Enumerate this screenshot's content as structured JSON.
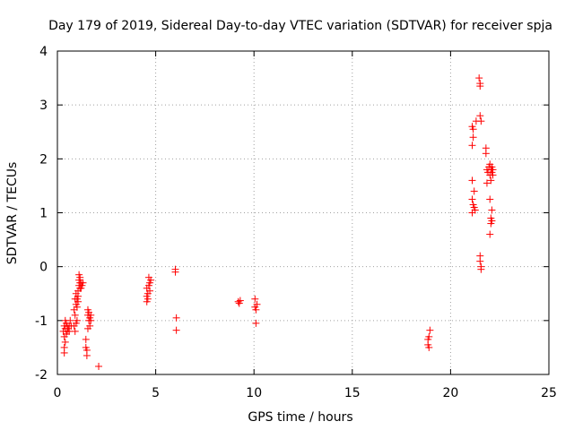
{
  "chart_data": {
    "type": "scatter",
    "title": "Day 179 of 2019, Sidereal Day-to-day VTEC variation (SDTVAR) for receiver spja",
    "xlabel": "GPS time / hours",
    "ylabel": "SDTVAR / TECUs",
    "xlim": [
      0,
      25
    ],
    "ylim": [
      -2,
      4
    ],
    "xticks": [
      0,
      5,
      10,
      15,
      20,
      25
    ],
    "yticks": [
      -2,
      -1,
      0,
      1,
      2,
      3,
      4
    ],
    "grid": true,
    "marker": "+",
    "series": [
      {
        "name": "SDTVAR",
        "color": "#ff0000",
        "points": [
          [
            0.3,
            -1.2
          ],
          [
            0.35,
            -1.1
          ],
          [
            0.35,
            -1.3
          ],
          [
            0.35,
            -1.5
          ],
          [
            0.35,
            -1.6
          ],
          [
            0.4,
            -1.0
          ],
          [
            0.4,
            -1.15
          ],
          [
            0.4,
            -1.4
          ],
          [
            0.45,
            -1.25
          ],
          [
            0.45,
            -1.05
          ],
          [
            0.5,
            -1.1
          ],
          [
            0.5,
            -1.2
          ],
          [
            0.55,
            -1.15
          ],
          [
            0.6,
            -1.1
          ],
          [
            0.6,
            -1.2
          ],
          [
            0.65,
            -1.0
          ],
          [
            0.7,
            -1.1
          ],
          [
            0.85,
            -0.8
          ],
          [
            0.85,
            -1.1
          ],
          [
            0.9,
            -0.6
          ],
          [
            0.9,
            -0.9
          ],
          [
            0.9,
            -1.2
          ],
          [
            0.95,
            -0.5
          ],
          [
            0.95,
            -0.7
          ],
          [
            0.95,
            -1.05
          ],
          [
            1.0,
            -0.6
          ],
          [
            1.0,
            -0.75
          ],
          [
            1.0,
            -1.0
          ],
          [
            1.05,
            -0.45
          ],
          [
            1.05,
            -0.55
          ],
          [
            1.05,
            -0.65
          ],
          [
            1.1,
            -0.15
          ],
          [
            1.1,
            -0.25
          ],
          [
            1.1,
            -0.35
          ],
          [
            1.15,
            -0.2
          ],
          [
            1.15,
            -0.3
          ],
          [
            1.15,
            -0.4
          ],
          [
            1.2,
            -0.3
          ],
          [
            1.2,
            -0.4
          ],
          [
            1.25,
            -0.35
          ],
          [
            1.3,
            -0.3
          ],
          [
            1.45,
            -1.35
          ],
          [
            1.45,
            -1.5
          ],
          [
            1.5,
            -1.55
          ],
          [
            1.5,
            -1.65
          ],
          [
            1.55,
            -0.8
          ],
          [
            1.55,
            -0.9
          ],
          [
            1.55,
            -1.15
          ],
          [
            1.6,
            -0.85
          ],
          [
            1.6,
            -1.0
          ],
          [
            1.65,
            -0.95
          ],
          [
            1.65,
            -1.1
          ],
          [
            1.7,
            -0.9
          ],
          [
            1.7,
            -1.0
          ],
          [
            2.1,
            -1.85
          ],
          [
            4.55,
            -0.4
          ],
          [
            4.55,
            -0.55
          ],
          [
            4.55,
            -0.65
          ],
          [
            4.6,
            -0.5
          ],
          [
            4.6,
            -0.6
          ],
          [
            4.65,
            -0.2
          ],
          [
            4.65,
            -0.35
          ],
          [
            4.7,
            -0.3
          ],
          [
            4.7,
            -0.45
          ],
          [
            4.75,
            -0.25
          ],
          [
            6.0,
            -0.05
          ],
          [
            6.0,
            -0.1
          ],
          [
            6.05,
            -0.95
          ],
          [
            6.05,
            -1.18
          ],
          [
            9.2,
            -0.65
          ],
          [
            9.25,
            -0.68
          ],
          [
            9.3,
            -0.63
          ],
          [
            10.05,
            -0.6
          ],
          [
            10.05,
            -0.75
          ],
          [
            10.1,
            -0.8
          ],
          [
            10.1,
            -1.05
          ],
          [
            10.15,
            -0.7
          ],
          [
            18.85,
            -1.35
          ],
          [
            18.85,
            -1.45
          ],
          [
            18.9,
            -1.3
          ],
          [
            18.9,
            -1.5
          ],
          [
            18.95,
            -1.18
          ],
          [
            21.1,
            2.6
          ],
          [
            21.1,
            2.25
          ],
          [
            21.1,
            1.6
          ],
          [
            21.1,
            1.25
          ],
          [
            21.1,
            1.0
          ],
          [
            21.15,
            2.55
          ],
          [
            21.15,
            2.4
          ],
          [
            21.15,
            1.15
          ],
          [
            21.2,
            1.1
          ],
          [
            21.2,
            1.4
          ],
          [
            21.25,
            1.05
          ],
          [
            21.3,
            2.7
          ],
          [
            21.45,
            3.5
          ],
          [
            21.5,
            3.4
          ],
          [
            21.5,
            3.35
          ],
          [
            21.5,
            2.8
          ],
          [
            21.55,
            2.7
          ],
          [
            21.5,
            0.2
          ],
          [
            21.5,
            0.1
          ],
          [
            21.55,
            0.0
          ],
          [
            21.55,
            -0.05
          ],
          [
            21.8,
            2.2
          ],
          [
            21.8,
            2.1
          ],
          [
            21.85,
            1.8
          ],
          [
            21.85,
            1.55
          ],
          [
            21.9,
            1.75
          ],
          [
            21.95,
            1.85
          ],
          [
            22.0,
            1.9
          ],
          [
            22.0,
            1.7
          ],
          [
            22.05,
            1.6
          ],
          [
            22.05,
            1.8
          ],
          [
            22.1,
            1.75
          ],
          [
            22.1,
            1.85
          ],
          [
            22.15,
            1.7
          ],
          [
            22.15,
            1.8
          ],
          [
            22.0,
            1.25
          ],
          [
            22.05,
            0.9
          ],
          [
            22.05,
            0.8
          ],
          [
            22.1,
            1.05
          ],
          [
            22.1,
            0.85
          ],
          [
            22.0,
            0.6
          ]
        ]
      }
    ]
  }
}
